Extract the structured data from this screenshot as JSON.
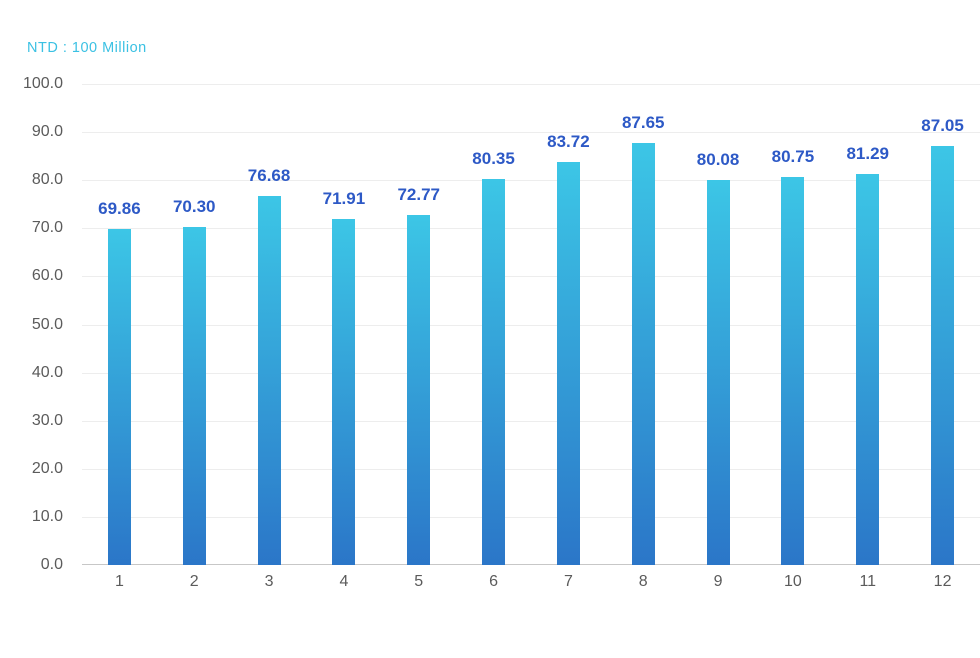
{
  "chart_data": {
    "type": "bar",
    "title": "NTD : 100 Million",
    "categories": [
      "1",
      "2",
      "3",
      "4",
      "5",
      "6",
      "7",
      "8",
      "9",
      "10",
      "11",
      "12"
    ],
    "values": [
      69.86,
      70.3,
      76.68,
      71.91,
      72.77,
      80.35,
      83.72,
      87.65,
      80.08,
      80.75,
      81.29,
      87.05
    ],
    "xlabel": "",
    "ylabel": "",
    "ylim": [
      0,
      100
    ],
    "ytick_step": 10,
    "ytick_decimals": 1,
    "value_label_decimals": 2,
    "grid": true,
    "legend": "none",
    "colors": {
      "title": "#3bc1e3",
      "bar_gradient_top": "#3cc6e6",
      "bar_gradient_bottom": "#2b76c8",
      "value_label": "#2d59c6",
      "axis_label": "#5b5b5b",
      "gridline": "#ededed",
      "baseline": "#c7c7c7"
    }
  }
}
